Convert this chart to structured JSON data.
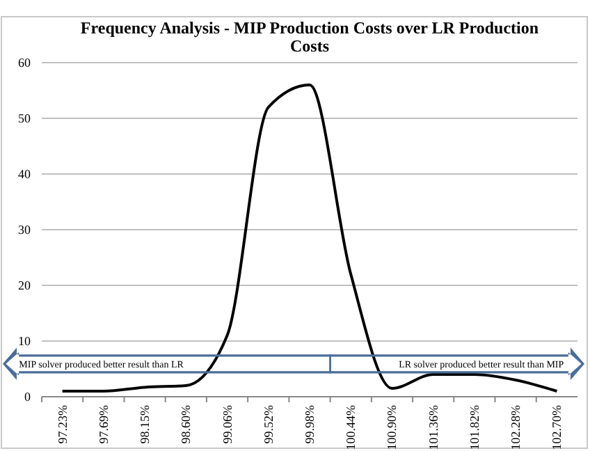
{
  "chart_data": {
    "type": "line",
    "title": "Frequency Analysis - MIP Production Costs over LR Production Costs",
    "categories": [
      "97.23%",
      "97.69%",
      "98.15%",
      "98.60%",
      "99.06%",
      "99.52%",
      "99.98%",
      "100.44%",
      "100.90%",
      "101.36%",
      "101.82%",
      "102.28%",
      "102.70%"
    ],
    "series": [
      {
        "color": "#000000",
        "values": [
          1,
          1,
          1.7,
          2,
          11,
          52,
          56,
          22,
          1.5,
          4,
          4,
          3,
          1
        ]
      }
    ],
    "ylim": [
      0,
      60
    ],
    "yticks": [
      0,
      10,
      20,
      30,
      40,
      50,
      60
    ],
    "grid": "y",
    "marker": "none",
    "line_style": "solid",
    "annotations": [
      "MIP solver produced better result than LR",
      "LR solver produced better result than MIP"
    ]
  }
}
